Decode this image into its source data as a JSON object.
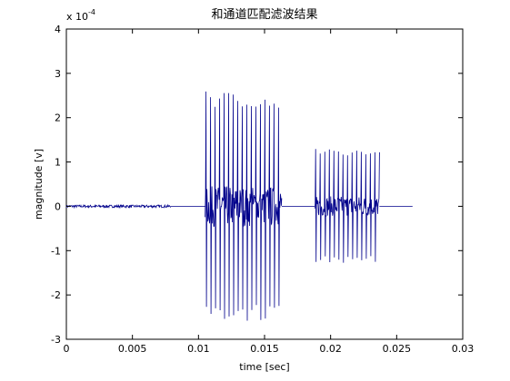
{
  "chart_data": {
    "type": "line",
    "title": "和通道匹配滤波结果",
    "xlabel": "time [sec]",
    "ylabel": "magnitude [v]",
    "y_exponent_label": "x 10",
    "y_exponent_power": "-4",
    "xlim": [
      0,
      0.03
    ],
    "ylim": [
      -3,
      4
    ],
    "x_ticks": [
      0,
      0.005,
      0.01,
      0.015,
      0.02,
      0.025,
      0.03
    ],
    "x_tick_labels": [
      "0",
      "0.005",
      "0.01",
      "0.015",
      "0.02",
      "0.025",
      "0.03"
    ],
    "y_ticks": [
      -3,
      -2,
      -1,
      0,
      1,
      2,
      3,
      4
    ],
    "y_tick_labels": [
      "-3",
      "-2",
      "-1",
      "0",
      "1",
      "2",
      "3",
      "4"
    ],
    "grid": false,
    "line_color": "#00008b",
    "series": [
      {
        "segments": [
          {
            "x_start": 0,
            "x_end": 0.0079,
            "amplitude": 0.03,
            "kind": "noise"
          },
          {
            "x_start": 0.0079,
            "x_end": 0.0105,
            "amplitude": 0,
            "kind": "flat"
          },
          {
            "x_start": 0.0105,
            "x_end": 0.0163,
            "amplitude": 2.6,
            "kind": "pulse"
          },
          {
            "x_start": 0.0163,
            "x_end": 0.0188,
            "amplitude": 0,
            "kind": "flat"
          },
          {
            "x_start": 0.0188,
            "x_end": 0.0237,
            "amplitude": 1.3,
            "kind": "pulse"
          },
          {
            "x_start": 0.0237,
            "x_end": 0.0262,
            "amplitude": 0,
            "kind": "flat"
          }
        ]
      }
    ]
  }
}
